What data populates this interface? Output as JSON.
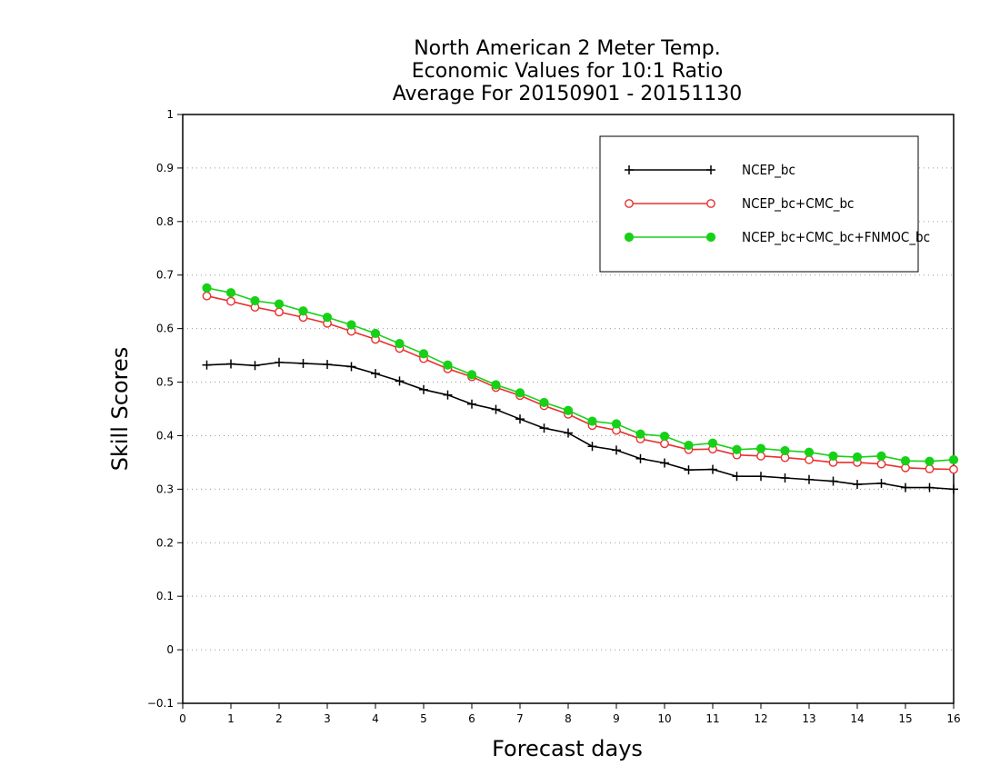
{
  "chart_data": {
    "type": "line",
    "title_lines": [
      "North American 2 Meter Temp.",
      "Economic Values for 10:1 Ratio",
      "Average For 20150901 - 20151130"
    ],
    "xlabel": "Forecast days",
    "ylabel": "Skill Scores",
    "xlim": [
      0,
      16
    ],
    "ylim": [
      -0.1,
      1
    ],
    "xticks": [
      0,
      1,
      2,
      3,
      4,
      5,
      6,
      7,
      8,
      9,
      10,
      11,
      12,
      13,
      14,
      15,
      16
    ],
    "yticks": [
      -0.1,
      0,
      0.1,
      0.2,
      0.3,
      0.4,
      0.5,
      0.6,
      0.7,
      0.8,
      0.9,
      1
    ],
    "xtick_labels": [
      "0",
      "1",
      "2",
      "3",
      "4",
      "5",
      "6",
      "7",
      "8",
      "9",
      "10",
      "11",
      "12",
      "13",
      "14",
      "15",
      "16"
    ],
    "ytick_labels": [
      "−0.1",
      "0",
      "0.1",
      "0.2",
      "0.3",
      "0.4",
      "0.5",
      "0.6",
      "0.7",
      "0.8",
      "0.9",
      "1"
    ],
    "grid": true,
    "legend_position": "top-right",
    "x": [
      0.5,
      1,
      1.5,
      2,
      2.5,
      3,
      3.5,
      4,
      4.5,
      5,
      5.5,
      6,
      6.5,
      7,
      7.5,
      8,
      8.5,
      9,
      9.5,
      10,
      10.5,
      11,
      11.5,
      12,
      12.5,
      13,
      13.5,
      14,
      14.5,
      15,
      15.5,
      16
    ],
    "series": [
      {
        "name": "NCEP_bc",
        "color": "#000000",
        "marker": "plus",
        "values": [
          0.532,
          0.534,
          0.531,
          0.537,
          0.535,
          0.533,
          0.529,
          0.516,
          0.502,
          0.486,
          0.476,
          0.459,
          0.449,
          0.431,
          0.414,
          0.405,
          0.38,
          0.373,
          0.357,
          0.349,
          0.336,
          0.337,
          0.324,
          0.324,
          0.321,
          0.318,
          0.315,
          0.309,
          0.311,
          0.303,
          0.303,
          0.3
        ]
      },
      {
        "name": "NCEP_bc+CMC_bc",
        "color": "#e8302e",
        "marker": "open-circle",
        "values": [
          0.661,
          0.651,
          0.64,
          0.631,
          0.621,
          0.61,
          0.595,
          0.58,
          0.563,
          0.544,
          0.525,
          0.51,
          0.49,
          0.475,
          0.456,
          0.44,
          0.419,
          0.41,
          0.394,
          0.385,
          0.374,
          0.375,
          0.364,
          0.362,
          0.359,
          0.355,
          0.35,
          0.35,
          0.347,
          0.34,
          0.338,
          0.337
        ]
      },
      {
        "name": "NCEP_bc+CMC_bc+FNMOC_bc",
        "color": "#17d117",
        "marker": "filled-circle",
        "values": [
          0.676,
          0.667,
          0.652,
          0.646,
          0.633,
          0.621,
          0.607,
          0.591,
          0.572,
          0.553,
          0.532,
          0.514,
          0.495,
          0.48,
          0.462,
          0.447,
          0.427,
          0.422,
          0.403,
          0.399,
          0.382,
          0.386,
          0.374,
          0.376,
          0.372,
          0.369,
          0.362,
          0.36,
          0.362,
          0.353,
          0.352,
          0.355
        ]
      }
    ]
  }
}
